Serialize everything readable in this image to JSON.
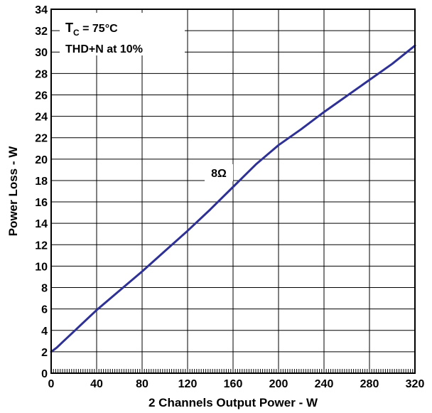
{
  "chart_data": {
    "type": "line",
    "xlabel": "2 Channels Output Power - W",
    "ylabel": "Power Loss - W",
    "xlim": [
      0,
      320
    ],
    "ylim": [
      0,
      34
    ],
    "xticks": [
      0,
      40,
      80,
      120,
      160,
      200,
      240,
      280,
      320
    ],
    "yticks": [
      0,
      2,
      4,
      6,
      8,
      10,
      12,
      14,
      16,
      18,
      20,
      22,
      24,
      26,
      28,
      30,
      32,
      34
    ],
    "grid": true,
    "annotations": {
      "tc_main": "T",
      "tc_sub": "C",
      "tc_rest": " = 75°C",
      "thd": "THD+N at 10%"
    },
    "series": [
      {
        "name": "8Ω",
        "color": "#2e3192",
        "x": [
          0,
          5,
          10,
          20,
          40,
          60,
          80,
          100,
          120,
          140,
          160,
          180,
          200,
          220,
          240,
          260,
          280,
          300,
          320
        ],
        "y": [
          2.0,
          2.4,
          2.9,
          3.9,
          5.9,
          7.7,
          9.5,
          11.4,
          13.3,
          15.3,
          17.4,
          19.5,
          21.3,
          22.8,
          24.4,
          25.9,
          27.4,
          28.9,
          30.6
        ]
      }
    ]
  }
}
